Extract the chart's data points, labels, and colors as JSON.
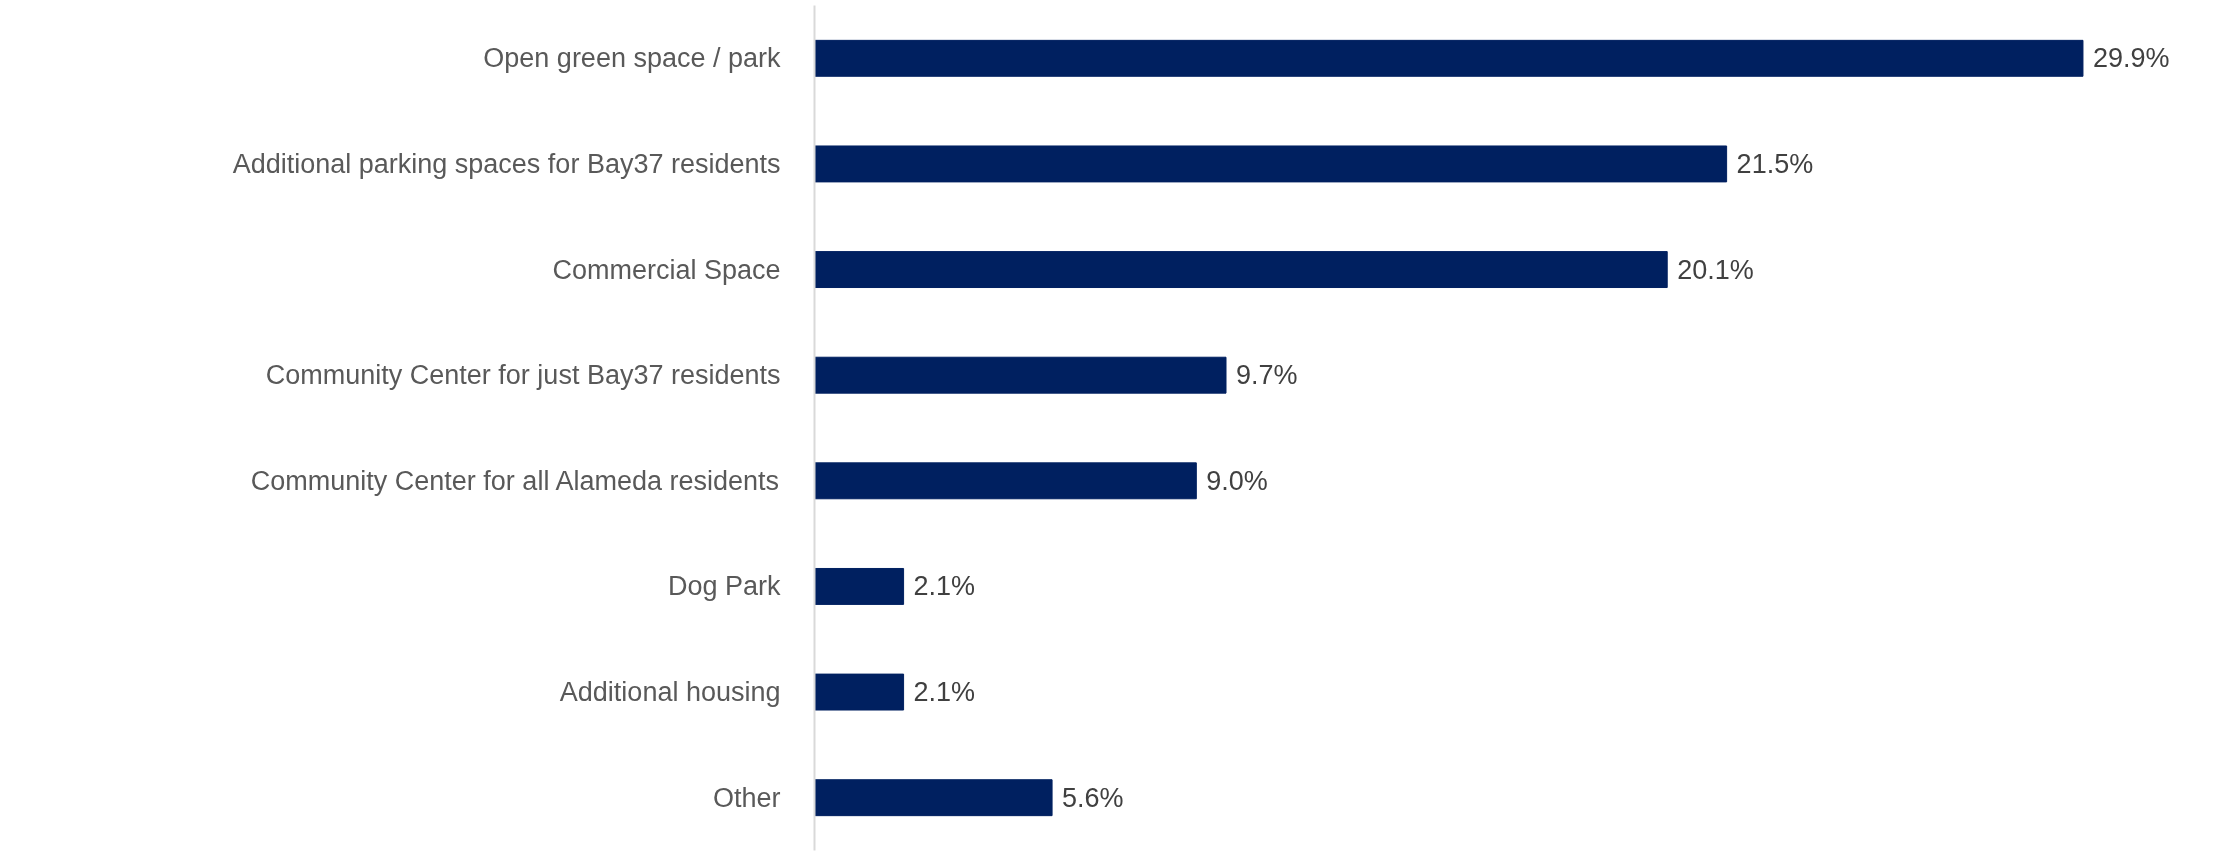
{
  "chart_data": {
    "type": "bar",
    "orientation": "horizontal",
    "categories": [
      "Open green space / park",
      "Additional parking spaces for Bay37 residents",
      "Commercial Space",
      "Community Center for just Bay37 residents",
      "Community Center for all Alameda residents",
      "Dog Park",
      "Additional housing",
      "Other"
    ],
    "values": [
      29.9,
      21.5,
      20.1,
      9.7,
      9.0,
      2.1,
      2.1,
      5.6
    ],
    "value_labels": [
      "29.9%",
      "21.5%",
      "20.1%",
      "9.7%",
      "9.0%",
      "2.1%",
      "2.1%",
      "5.6%"
    ],
    "color": "#002060",
    "grid": false
  }
}
